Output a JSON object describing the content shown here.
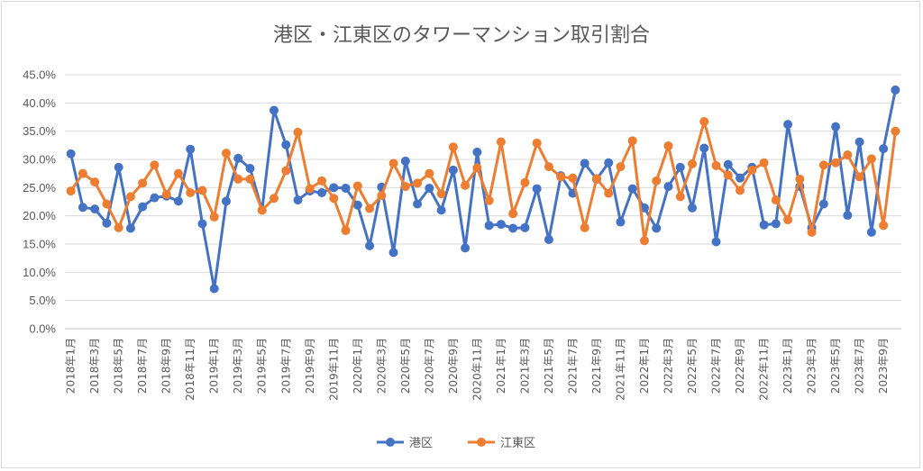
{
  "chart_data": {
    "type": "line",
    "title": "港区・江東区のタワーマンション取引割合",
    "xlabel": "",
    "ylabel": "",
    "ylim": [
      0,
      45
    ],
    "yticks": [
      "0.0%",
      "5.0%",
      "10.0%",
      "15.0%",
      "20.0%",
      "25.0%",
      "30.0%",
      "35.0%",
      "40.0%",
      "45.0%"
    ],
    "x": [
      "2018年1月",
      "2018年2月",
      "2018年3月",
      "2018年4月",
      "2018年5月",
      "2018年6月",
      "2018年7月",
      "2018年8月",
      "2018年9月",
      "2018年10月",
      "2018年11月",
      "2018年12月",
      "2019年1月",
      "2019年2月",
      "2019年3月",
      "2019年4月",
      "2019年5月",
      "2019年6月",
      "2019年7月",
      "2019年8月",
      "2019年9月",
      "2019年10月",
      "2019年11月",
      "2019年12月",
      "2020年1月",
      "2020年2月",
      "2020年3月",
      "2020年4月",
      "2020年5月",
      "2020年6月",
      "2020年7月",
      "2020年8月",
      "2020年9月",
      "2020年10月",
      "2020年11月",
      "2020年12月",
      "2021年1月",
      "2021年2月",
      "2021年3月",
      "2021年4月",
      "2021年5月",
      "2021年6月",
      "2021年7月",
      "2021年8月",
      "2021年9月",
      "2021年10月",
      "2021年11月",
      "2021年12月",
      "2022年1月",
      "2022年2月",
      "2022年3月",
      "2022年4月",
      "2022年5月",
      "2022年6月",
      "2022年7月",
      "2022年8月",
      "2022年9月",
      "2022年10月",
      "2022年11月",
      "2022年12月",
      "2023年1月",
      "2023年2月",
      "2023年3月",
      "2023年4月",
      "2023年5月",
      "2023年6月",
      "2023年7月",
      "2023年8月",
      "2023年9月",
      "2023年10月"
    ],
    "xtick_labels": [
      "2018年1月",
      "2018年3月",
      "2018年5月",
      "2018年7月",
      "2018年9月",
      "2018年11月",
      "2019年1月",
      "2019年3月",
      "2019年5月",
      "2019年7月",
      "2019年9月",
      "2019年11月",
      "2020年1月",
      "2020年3月",
      "2020年5月",
      "2020年7月",
      "2020年9月",
      "2020年11月",
      "2021年1月",
      "2021年3月",
      "2021年5月",
      "2021年7月",
      "2021年9月",
      "2021年11月",
      "2022年1月",
      "2022年3月",
      "2022年5月",
      "2022年7月",
      "2022年9月",
      "2022年11月",
      "2023年1月",
      "2023年3月",
      "2023年5月",
      "2023年7月",
      "2023年9月"
    ],
    "series": [
      {
        "name": "港区",
        "color": "#4472C4",
        "values": [
          31.0,
          21.5,
          21.2,
          18.7,
          28.6,
          17.8,
          21.6,
          23.2,
          23.5,
          22.6,
          31.8,
          18.6,
          7.1,
          22.6,
          30.2,
          28.4,
          21.0,
          38.7,
          32.6,
          22.8,
          24.4,
          24.1,
          25.0,
          24.9,
          21.9,
          14.7,
          25.1,
          13.5,
          29.7,
          22.1,
          24.9,
          21.0,
          28.1,
          14.3,
          31.3,
          18.3,
          18.5,
          17.8,
          17.9,
          24.8,
          15.8,
          27.1,
          24.0,
          29.3,
          26.5,
          29.4,
          18.9,
          24.8,
          21.4,
          17.8,
          25.2,
          28.6,
          21.4,
          32.0,
          15.4,
          29.1,
          26.7,
          28.6,
          18.4,
          18.6,
          36.2,
          25.2,
          17.9,
          22.1,
          35.8,
          20.1,
          33.1,
          17.1,
          31.9,
          42.3
        ]
      },
      {
        "name": "江東区",
        "color": "#ED7D31",
        "values": [
          24.4,
          27.5,
          26.0,
          22.1,
          17.9,
          23.4,
          25.8,
          29.0,
          23.8,
          27.5,
          24.1,
          24.5,
          19.8,
          31.1,
          26.5,
          26.5,
          21.0,
          23.1,
          28.0,
          34.8,
          24.8,
          26.2,
          23.1,
          17.4,
          25.3,
          21.3,
          23.6,
          29.3,
          25.2,
          25.8,
          27.5,
          23.9,
          32.2,
          25.4,
          28.5,
          22.7,
          33.1,
          20.4,
          25.9,
          32.9,
          28.7,
          26.9,
          26.7,
          17.9,
          26.6,
          24.0,
          28.7,
          33.3,
          15.6,
          26.2,
          32.4,
          23.4,
          29.2,
          36.7,
          28.9,
          27.2,
          24.5,
          28.1,
          29.4,
          22.8,
          19.3,
          26.5,
          17.1,
          29.0,
          29.4,
          30.8,
          26.9,
          30.1,
          18.3,
          35.0
        ]
      }
    ],
    "legend": "bottom",
    "grid": true
  }
}
